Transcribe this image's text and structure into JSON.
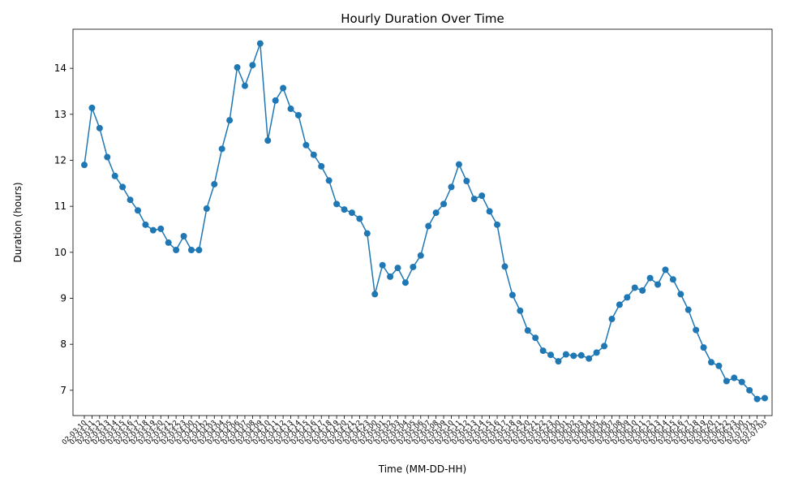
{
  "chart_data": {
    "type": "line",
    "title": "Hourly Duration Over Time",
    "xlabel": "Time (MM-DD-HH)",
    "ylabel": "Duration (hours)",
    "ylim": [
      6.45,
      14.85
    ],
    "yticks": [
      7,
      8,
      9,
      10,
      11,
      12,
      13,
      14
    ],
    "grid": false,
    "marker": "circle",
    "line_color": "#1f77b4",
    "categories": [
      "02-03-10",
      "02-03-11",
      "02-03-12",
      "02-03-13",
      "02-03-14",
      "02-03-15",
      "02-03-16",
      "02-03-17",
      "02-03-18",
      "02-03-19",
      "02-03-20",
      "02-03-21",
      "02-03-22",
      "02-03-23",
      "02-04-00",
      "02-04-01",
      "02-04-02",
      "02-04-03",
      "02-04-04",
      "02-04-05",
      "02-04-06",
      "02-04-07",
      "02-04-08",
      "02-04-09",
      "02-04-10",
      "02-04-11",
      "02-04-12",
      "02-04-13",
      "02-04-14",
      "02-04-15",
      "02-04-16",
      "02-04-17",
      "02-04-18",
      "02-04-19",
      "02-04-20",
      "02-04-21",
      "02-04-22",
      "02-04-23",
      "02-05-00",
      "02-05-01",
      "02-05-02",
      "02-05-03",
      "02-05-04",
      "02-05-05",
      "02-05-06",
      "02-05-07",
      "02-05-08",
      "02-05-09",
      "02-05-10",
      "02-05-11",
      "02-05-12",
      "02-05-13",
      "02-05-14",
      "02-05-15",
      "02-05-16",
      "02-05-17",
      "02-05-18",
      "02-05-19",
      "02-05-20",
      "02-05-21",
      "02-05-22",
      "02-05-23",
      "02-06-00",
      "02-06-01",
      "02-06-02",
      "02-06-03",
      "02-06-04",
      "02-06-05",
      "02-06-06",
      "02-06-07",
      "02-06-08",
      "02-06-09",
      "02-06-10",
      "02-06-11",
      "02-06-12",
      "02-06-13",
      "02-06-14",
      "02-06-15",
      "02-06-16",
      "02-06-17",
      "02-06-18",
      "02-06-19",
      "02-06-20",
      "02-06-21",
      "02-06-22",
      "02-06-23",
      "02-07-00",
      "02-07-01",
      "02-07-02",
      "02-07-03"
    ],
    "values": [
      11.9,
      13.14,
      12.7,
      12.07,
      11.66,
      11.42,
      11.14,
      10.91,
      10.6,
      10.48,
      10.51,
      10.21,
      10.05,
      10.35,
      10.05,
      10.05,
      10.95,
      11.48,
      12.25,
      12.87,
      14.02,
      13.62,
      14.07,
      14.54,
      12.43,
      13.3,
      13.57,
      13.12,
      12.98,
      12.33,
      12.12,
      11.87,
      11.56,
      11.05,
      10.93,
      10.86,
      10.73,
      10.41,
      9.09,
      9.72,
      9.47,
      9.66,
      9.34,
      9.68,
      9.93,
      10.57,
      10.86,
      11.05,
      11.42,
      11.91,
      11.55,
      11.16,
      11.23,
      10.89,
      10.6,
      9.69,
      9.07,
      8.73,
      8.3,
      8.14,
      7.86,
      7.77,
      7.63,
      7.78,
      7.75,
      7.76,
      7.69,
      7.82,
      7.96,
      8.55,
      8.86,
      9.02,
      9.23,
      9.17,
      9.44,
      9.3,
      9.62,
      9.41,
      9.09,
      8.75,
      8.31,
      7.93,
      7.61,
      7.53,
      7.2,
      7.27,
      7.18,
      7.0,
      6.81,
      6.83
    ]
  }
}
